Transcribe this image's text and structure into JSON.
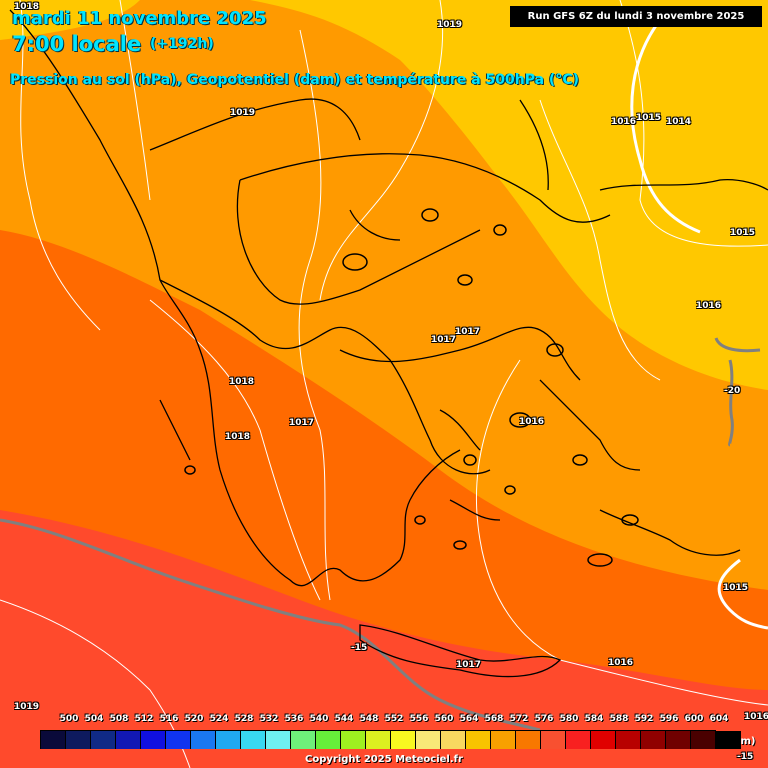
{
  "header": {
    "date": "mardi 11 novembre 2025",
    "time": "7:00 locale",
    "offset": "(+192h)",
    "subtitle": "Pression au sol (hPa), Geopotentiel (dam) et température à 500hPa (°C)",
    "run": "Run GFS 6Z du lundi 3 novembre 2025"
  },
  "pressure_labels": [
    "1018",
    "1019",
    "1019",
    "1016",
    "1015",
    "1014",
    "1015",
    "1016",
    "1017",
    "1017",
    "1018",
    "1017",
    "1018",
    "1016",
    "1017",
    "1016",
    "1015",
    "1019",
    "1016"
  ],
  "temperature_labels": [
    "-20",
    "-15",
    "-15"
  ],
  "legend": {
    "ticks": [
      "500",
      "504",
      "508",
      "512",
      "516",
      "520",
      "524",
      "528",
      "532",
      "536",
      "540",
      "544",
      "548",
      "552",
      "556",
      "560",
      "564",
      "568",
      "572",
      "576",
      "580",
      "584",
      "588",
      "592",
      "596",
      "600",
      "604"
    ],
    "colors": [
      "#0a0a3a",
      "#0e1a5e",
      "#102a86",
      "#1218b4",
      "#1010e0",
      "#1034f0",
      "#1a78f0",
      "#20a8f0",
      "#38d8f0",
      "#6ef0f0",
      "#6ef07a",
      "#66ee3a",
      "#9ef020",
      "#dcf020",
      "#f8f820",
      "#f8e878",
      "#f8d860",
      "#f8c400",
      "#f8a000",
      "#f87800",
      "#f85030",
      "#f82020",
      "#e00000",
      "#b80000",
      "#900000",
      "#700000",
      "#4a0000",
      "#000000"
    ],
    "unit": "(dam)"
  },
  "copyright": "Copyright 2025 Meteociel.fr",
  "colors": {
    "band_564": "#ffc800",
    "band_568": "#ff9a00",
    "band_572": "#ff6a00",
    "band_576": "#ff4a2c",
    "coast": "#000000",
    "isobar": "#ffffff",
    "isotherm": "#808080",
    "title": "#00e5ff"
  }
}
